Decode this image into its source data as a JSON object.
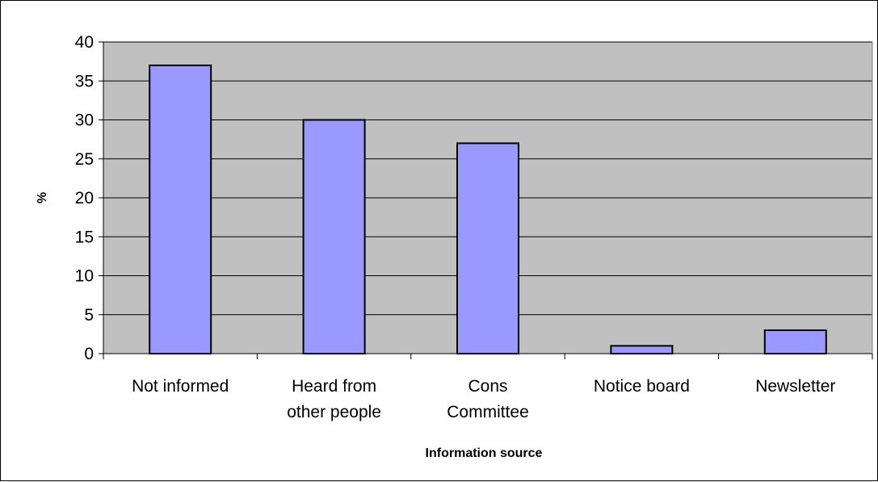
{
  "chart_data": {
    "type": "bar",
    "title": "",
    "xlabel": "Information source",
    "ylabel": "%",
    "categories": [
      [
        "Not informed"
      ],
      [
        "Heard from",
        "other people"
      ],
      [
        "Cons",
        "Committee"
      ],
      [
        "Notice board"
      ],
      [
        "Newsletter"
      ]
    ],
    "series": [
      {
        "values": [
          37,
          30,
          27,
          1,
          3
        ]
      }
    ],
    "ylim": [
      0,
      40
    ],
    "yticks": [
      "0",
      "5",
      "10",
      "15",
      "20",
      "25",
      "30",
      "35",
      "40"
    ],
    "grid": true,
    "legend": "none",
    "colors": {
      "plot_background": "#c0c0c0",
      "bar_fill": "#9999ff",
      "bar_stroke": "#000000",
      "gridline": "#000000"
    }
  }
}
